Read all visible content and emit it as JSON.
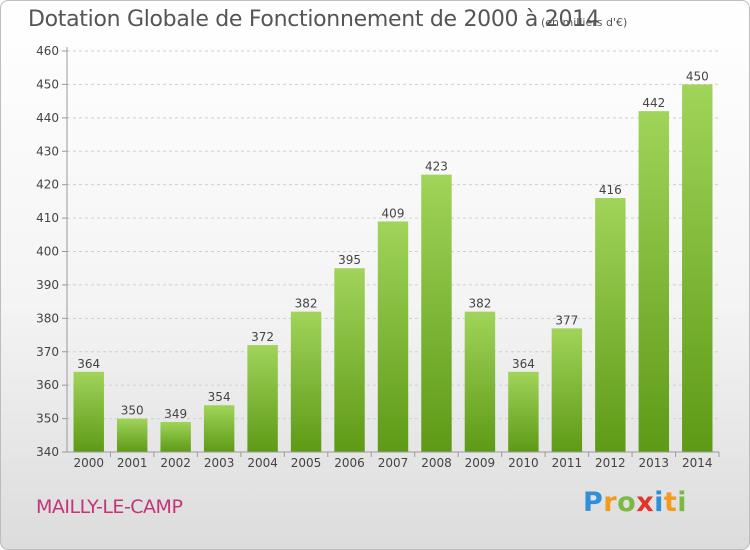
{
  "header": {
    "title": "Dotation Globale de Fonctionnement de 2000 à 2014",
    "subtitle": "(en milliers d'€)"
  },
  "footer": {
    "commune": "MAILLY-LE-CAMP",
    "logo_text": "Proxiti",
    "logo_colors": [
      "#2f8fd8",
      "#f39a1e",
      "#7cb842",
      "#e2342a",
      "#2f8fd8",
      "#f39a1e",
      "#7cb842"
    ]
  },
  "chart_data": {
    "type": "bar",
    "title": "Dotation Globale de Fonctionnement de 2000 à 2014",
    "subtitle": "(en milliers d'€)",
    "xlabel": "",
    "ylabel": "",
    "categories": [
      "2000",
      "2001",
      "2002",
      "2003",
      "2004",
      "2005",
      "2006",
      "2007",
      "2008",
      "2009",
      "2010",
      "2011",
      "2012",
      "2013",
      "2014"
    ],
    "values": [
      364,
      350,
      349,
      354,
      372,
      382,
      395,
      409,
      423,
      382,
      364,
      377,
      416,
      442,
      450
    ],
    "ylim": [
      340,
      460
    ],
    "yticks": [
      340,
      350,
      360,
      370,
      380,
      390,
      400,
      410,
      420,
      430,
      440,
      450,
      460
    ],
    "grid": true,
    "colors": {
      "bar_top": "#a0d45a",
      "bar_bottom": "#5e9a16",
      "grid": "#cfcfcf",
      "axis": "#9a9a9a",
      "text": "#444444"
    }
  }
}
